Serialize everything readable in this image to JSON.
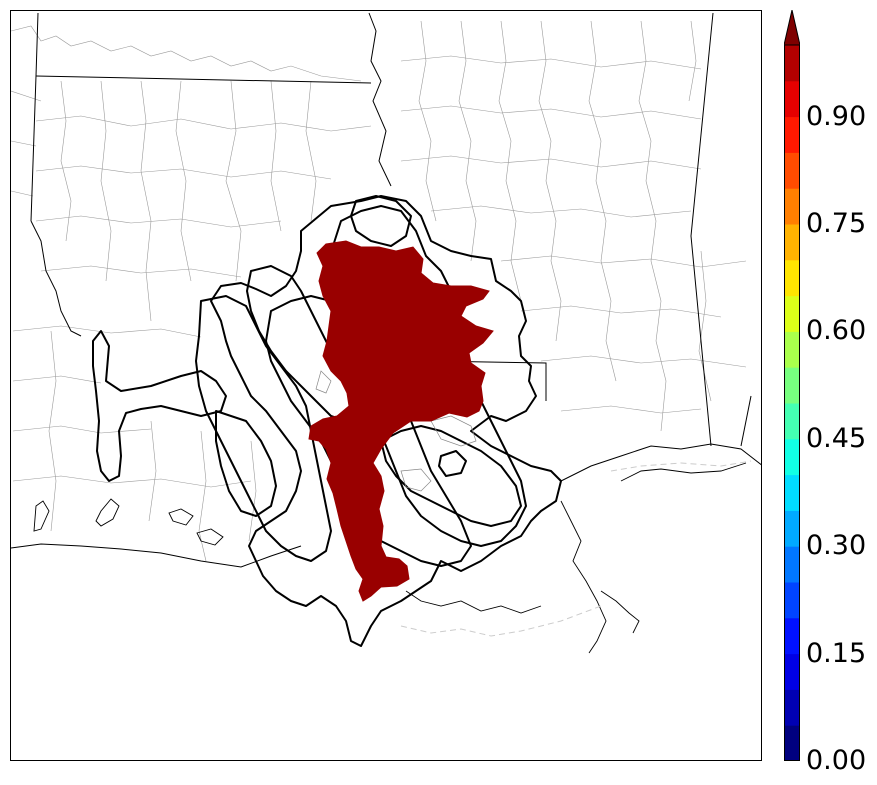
{
  "map": {
    "fill_color": "#990000",
    "county_line_color": "#9a9a9a",
    "state_line_color": "#000000",
    "contour_color": "#000000"
  },
  "colorbar": {
    "colormap": "jet",
    "min": 0.0,
    "max": 1.0,
    "levels": 20,
    "extend": "max",
    "tick_labels": [
      "0.00",
      "0.15",
      "0.30",
      "0.45",
      "0.60",
      "0.75",
      "0.90"
    ],
    "tick_values": [
      0.0,
      0.15,
      0.3,
      0.45,
      0.6,
      0.75,
      0.9
    ],
    "colors": [
      "#00007f",
      "#0000b2",
      "#0000e5",
      "#0011ff",
      "#0044ff",
      "#0077ff",
      "#00aaff",
      "#00ddff",
      "#11ffe5",
      "#44ffb2",
      "#77ff7f",
      "#aaff4c",
      "#ddff19",
      "#ffe500",
      "#ffb200",
      "#ff7f00",
      "#ff4c00",
      "#ff1900",
      "#e50000",
      "#b20000",
      "#7f0000"
    ]
  }
}
